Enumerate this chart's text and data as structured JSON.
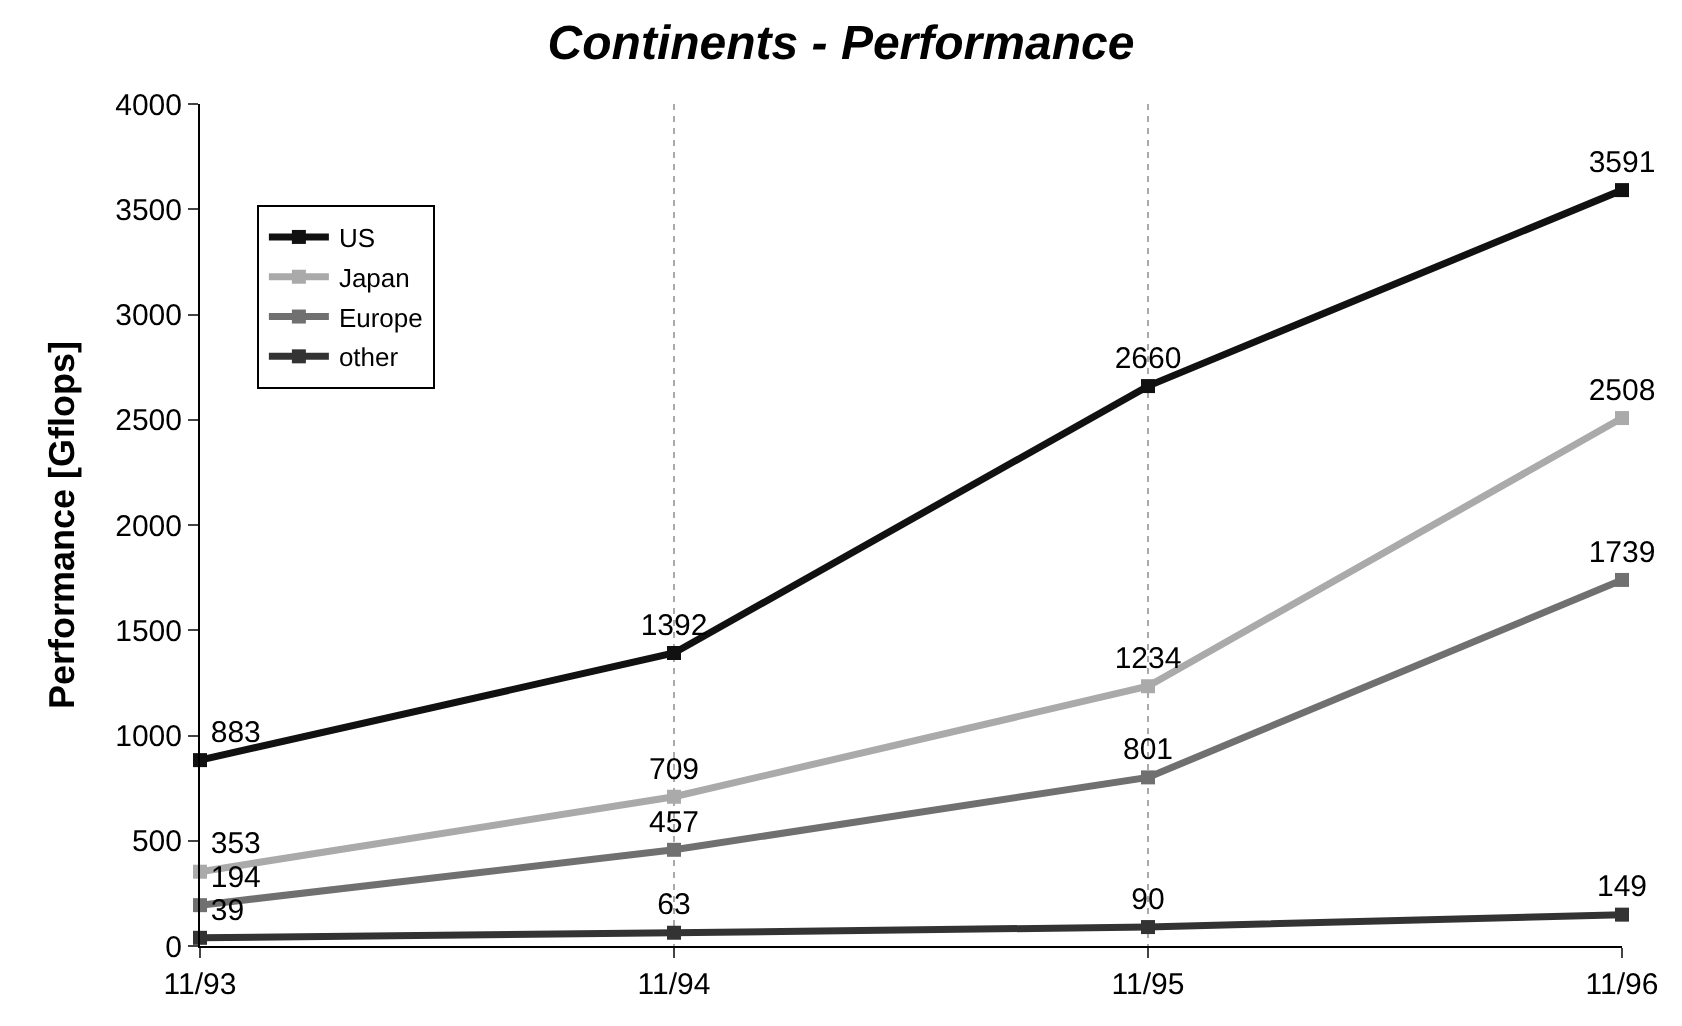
{
  "chart_data": {
    "type": "line",
    "title": "Continents - Performance",
    "ylabel": "Performance [Gflops]",
    "categories": [
      "11/93",
      "11/94",
      "11/95",
      "11/96"
    ],
    "series": [
      {
        "name": "US",
        "color": "#111111",
        "values": [
          883,
          1392,
          2660,
          3591
        ]
      },
      {
        "name": "Japan",
        "color": "#aaaaaa",
        "values": [
          353,
          709,
          1234,
          2508
        ]
      },
      {
        "name": "Europe",
        "color": "#707070",
        "values": [
          194,
          457,
          801,
          1739
        ]
      },
      {
        "name": "other",
        "color": "#333333",
        "values": [
          39,
          63,
          90,
          149
        ]
      }
    ],
    "ylim": [
      0,
      4000
    ],
    "yticks": [
      0,
      500,
      1000,
      1500,
      2000,
      2500,
      3000,
      3500,
      4000
    ],
    "grid": "x",
    "legend": "top left",
    "marker": "square",
    "line_style": "solid",
    "data_labels": true
  }
}
